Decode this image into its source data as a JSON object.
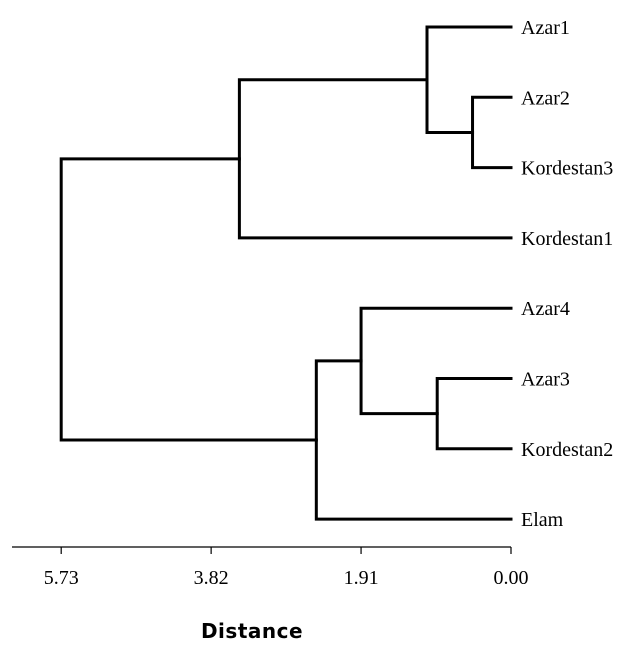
{
  "chart_data": {
    "type": "dendrogram",
    "xlabel": "Distance",
    "x_axis_direction": "reversed",
    "xlim": [
      5.73,
      0.0
    ],
    "ticks": [
      "5.73",
      "3.82",
      "1.91",
      "0.00"
    ],
    "tick_values": [
      5.73,
      3.82,
      1.91,
      0.0
    ],
    "leaves": [
      "Azar1",
      "Azar2",
      "Kordestan3",
      "Kordestan1",
      "Azar4",
      "Azar3",
      "Kordestan2",
      "Elam"
    ],
    "merges": [
      {
        "children": [
          "Azar2",
          "Kordestan3"
        ],
        "height": 0.49
      },
      {
        "children": [
          "Azar1",
          "Azar2+Kordestan3"
        ],
        "height": 1.07
      },
      {
        "children": [
          "Azar1+Azar2+Kordestan3",
          "Kordestan1"
        ],
        "height": 3.46
      },
      {
        "children": [
          "Azar3",
          "Kordestan2"
        ],
        "height": 0.94
      },
      {
        "children": [
          "Azar4",
          "Azar3+Kordestan2"
        ],
        "height": 1.91
      },
      {
        "children": [
          "Azar4+Azar3+Kordestan2",
          "Elam"
        ],
        "height": 2.48
      },
      {
        "children": [
          "group1",
          "group2"
        ],
        "height": 5.73
      }
    ],
    "line_color": "#000000"
  }
}
